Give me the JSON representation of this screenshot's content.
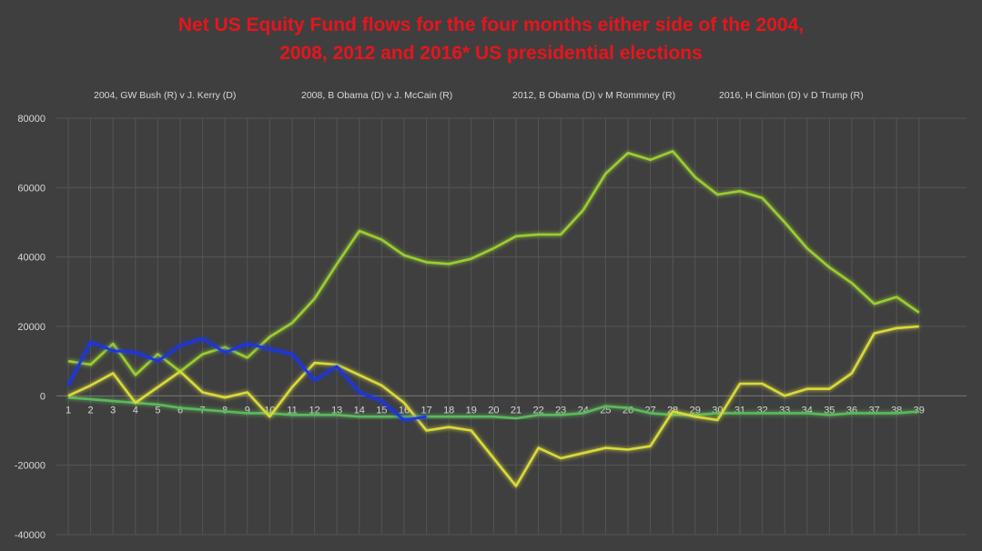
{
  "chart_data": {
    "type": "line",
    "title_lines": [
      "Net US Equity Fund flows for the four months either side of the 2004,",
      "2008, 2012 and 2016* US presidential elections"
    ],
    "categories": [
      "1",
      "2",
      "3",
      "4",
      "5",
      "6",
      "7",
      "8",
      "9",
      "10",
      "11",
      "12",
      "13",
      "14",
      "15",
      "16",
      "17",
      "18",
      "19",
      "20",
      "21",
      "22",
      "23",
      "24",
      "25",
      "26",
      "27",
      "28",
      "29",
      "30",
      "31",
      "32",
      "33",
      "34",
      "35",
      "36",
      "37",
      "38",
      "39"
    ],
    "ylim": [
      -40000,
      80000
    ],
    "yticks": [
      "80000",
      "60000",
      "40000",
      "20000",
      "0",
      "-20000",
      "-40000"
    ],
    "grid": true,
    "legend_position": "top",
    "election_marker_x": 19,
    "series": [
      {
        "name": "2004, GW Bush (R) v J. Kerry (D)",
        "color": "#5cb85c",
        "values": [
          -500,
          -1000,
          -1500,
          -2000,
          -2500,
          -3500,
          -4000,
          -4500,
          -5000,
          -5000,
          -5500,
          -5500,
          -5500,
          -6000,
          -6000,
          -6000,
          -6000,
          -6000,
          -6000,
          -6000,
          -6500,
          -5500,
          -5500,
          -5000,
          -3000,
          -3500,
          -5000,
          -5500,
          -5500,
          -5000,
          -5000,
          -5000,
          -5000,
          -5000,
          -5500,
          -5000,
          -5000,
          -5000,
          -4500
        ]
      },
      {
        "name": "2008, B Obama (D) v J. McCain (R)",
        "color": "#9acd32",
        "values": [
          10000,
          9000,
          15000,
          6000,
          12000,
          7000,
          12000,
          14000,
          11000,
          17000,
          21000,
          28000,
          38000,
          47500,
          45000,
          40500,
          38500,
          38000,
          39500,
          42500,
          46000,
          46500,
          46500,
          53500,
          64000,
          70000,
          68000,
          70500,
          63000,
          58000,
          59000,
          57000,
          50000,
          42500,
          37000,
          32500,
          26500,
          28500,
          24000
        ]
      },
      {
        "name": "2012, B Obama (D) v M Rommney (R)",
        "color": "#d9d93a",
        "values": [
          0,
          3000,
          6500,
          -2000,
          2500,
          7000,
          1000,
          -500,
          1000,
          -6000,
          2500,
          9500,
          9000,
          6000,
          3000,
          -2000,
          -10000,
          -9000,
          -10000,
          -18000,
          -26000,
          -15000,
          -18000,
          -16500,
          -15000,
          -15500,
          -14500,
          -4500,
          -6000,
          -7000,
          3500,
          3500,
          0,
          2000,
          2000,
          6500,
          18000,
          19500,
          20000
        ]
      },
      {
        "name": "2016, H Clinton  (D) v D Trump (R)",
        "color": "#1c35e0",
        "values": [
          3000,
          15500,
          13000,
          12500,
          10000,
          14500,
          16500,
          12500,
          15000,
          13500,
          12000,
          4500,
          8500,
          1000,
          -1500,
          -7000,
          -6000,
          null,
          null,
          null,
          null,
          null,
          null,
          null,
          null,
          null,
          null,
          null,
          null,
          null,
          null,
          null,
          null,
          null,
          null,
          null,
          null,
          null,
          null
        ]
      }
    ]
  }
}
